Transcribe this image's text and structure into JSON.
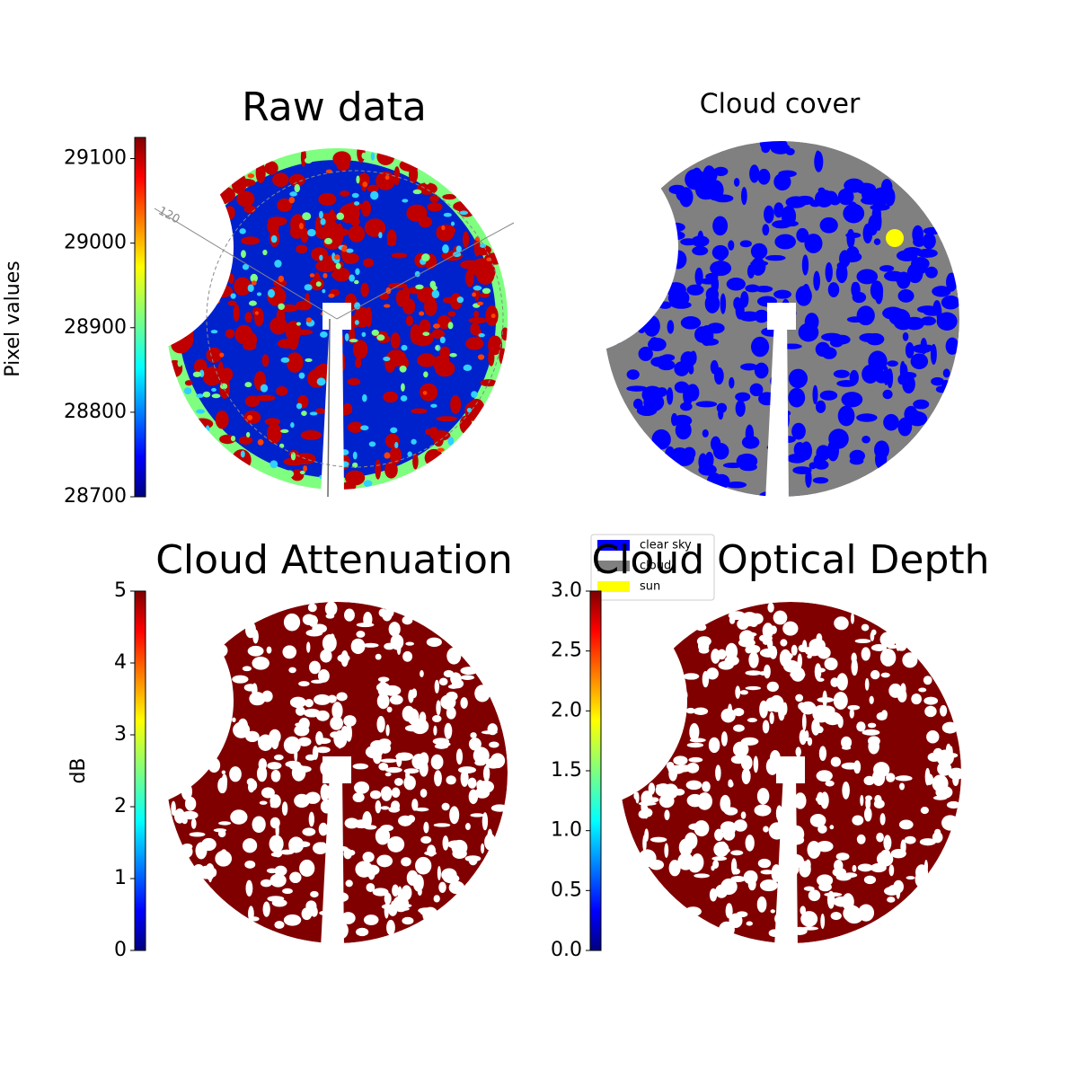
{
  "chart_data": [
    {
      "type": "image",
      "title": "Raw data",
      "ylabel": "Pixel values",
      "colormap": "jet",
      "ylim": [
        28700,
        29125
      ],
      "yticks": [
        28700,
        28800,
        28900,
        29000,
        29100
      ],
      "annotations": [
        "120"
      ]
    },
    {
      "type": "image",
      "title": "Cloud cover",
      "legend": [
        {
          "name": "clear sky",
          "color": "#0000ff"
        },
        {
          "name": "cloud",
          "color": "#808080"
        },
        {
          "name": "sun",
          "color": "#ffff00"
        }
      ]
    },
    {
      "type": "image",
      "title": "Cloud Attenuation",
      "ylabel": "dB",
      "colormap": "jet",
      "ylim": [
        0,
        5
      ],
      "yticks": [
        0,
        1,
        2,
        3,
        4,
        5
      ]
    },
    {
      "type": "image",
      "title": "Cloud Optical Depth",
      "colormap": "jet",
      "ylim": [
        0,
        3
      ],
      "yticks": [
        {
          "value": 0,
          "label": "0.0"
        },
        0.5,
        {
          "value": 1,
          "label": "1.0"
        },
        1.5,
        {
          "value": 2,
          "label": "2.0"
        },
        2.5,
        {
          "value": 3,
          "label": "3.0"
        }
      ]
    }
  ]
}
